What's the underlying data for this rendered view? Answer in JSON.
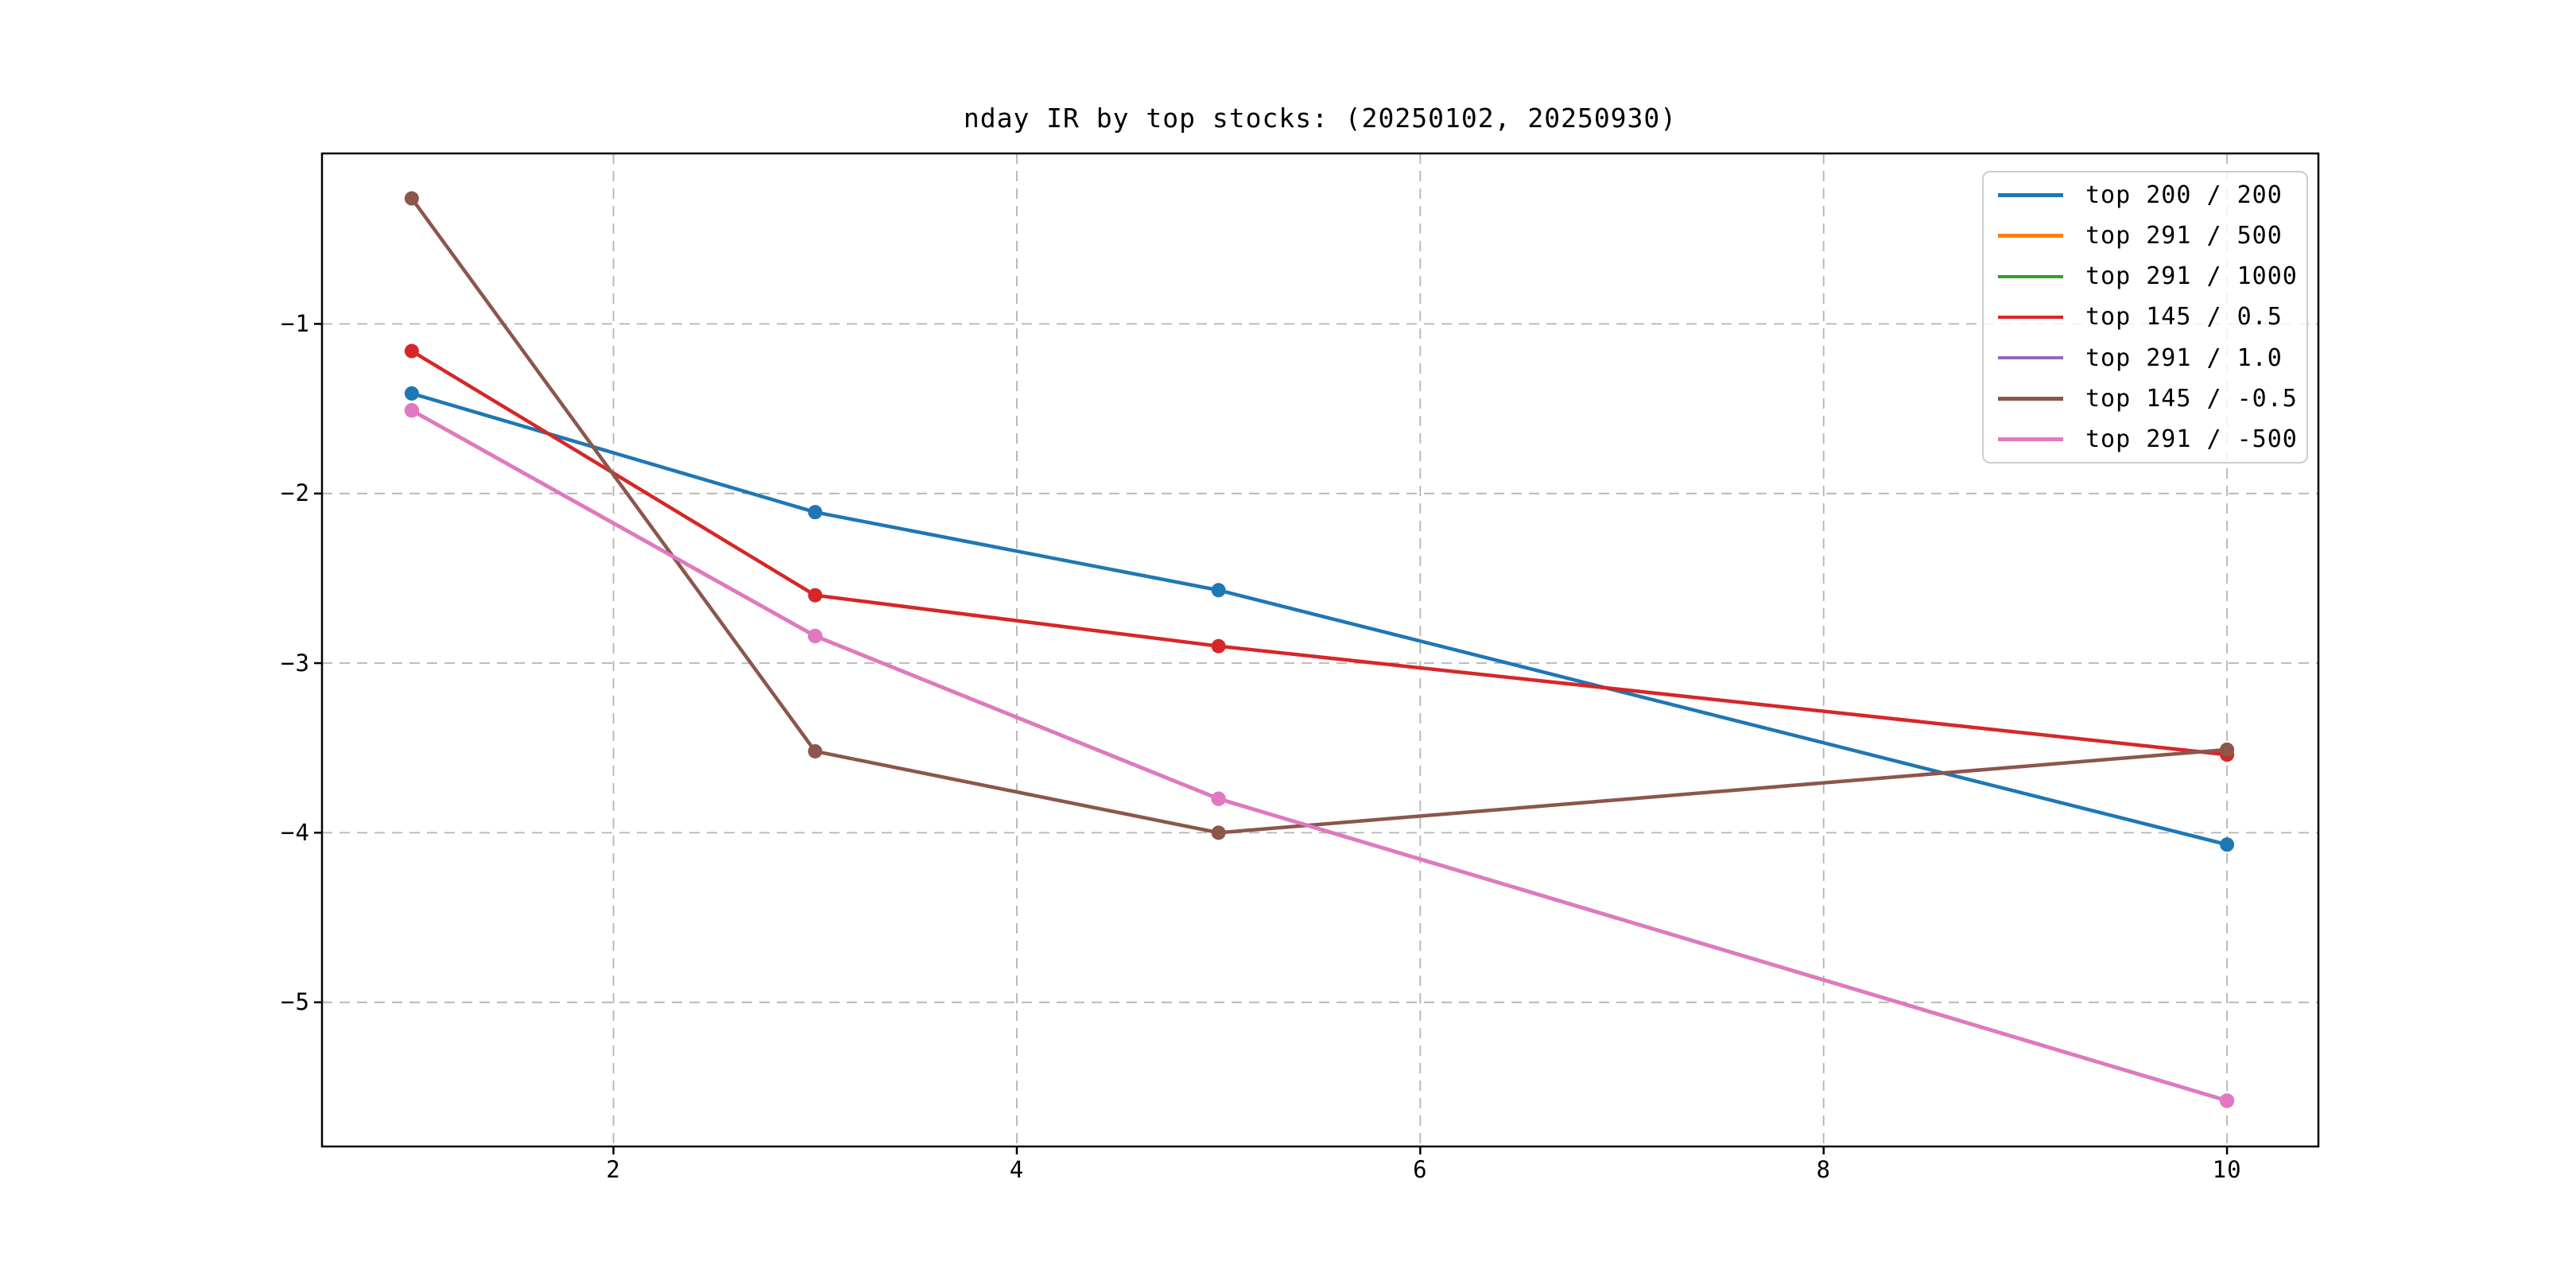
{
  "title": "nday IR by top stocks: (20250102, 20250930)",
  "chart_data": {
    "type": "line",
    "title": "nday IR by top stocks: (20250102, 20250930)",
    "xlabel": "",
    "ylabel": "",
    "x": [
      1,
      3,
      5,
      10
    ],
    "xlim": [
      0.555,
      10.453
    ],
    "ylim": [
      -5.85,
      0.005
    ],
    "xticks": {
      "values": [
        2,
        4,
        6,
        8,
        10
      ],
      "labels": [
        "2",
        "4",
        "6",
        "8",
        "10"
      ]
    },
    "yticks": {
      "values": [
        -1,
        -2,
        -3,
        -4,
        -5
      ],
      "labels": [
        "−1",
        "−2",
        "−3",
        "−4",
        "−5"
      ]
    },
    "grid": true,
    "grid_style": "dashed",
    "grid_color": "#b4b4b4",
    "legend_position": "upper right",
    "marker": "o",
    "series": [
      {
        "name": "top 200 / 200",
        "color": "#1f77b4",
        "values": [
          -1.41,
          -2.11,
          -2.57,
          -4.07
        ]
      },
      {
        "name": "top 291 / 500",
        "color": "#ff7f0e",
        "values": [
          -1.51,
          -2.84,
          -3.8,
          -5.58
        ]
      },
      {
        "name": "top 291 / 1000",
        "color": "#2ca02c",
        "values": [
          -1.51,
          -2.84,
          -3.8,
          -5.58
        ]
      },
      {
        "name": "top 145 / 0.5",
        "color": "#d62728",
        "values": [
          -1.16,
          -2.6,
          -2.9,
          -3.54
        ]
      },
      {
        "name": "top 291 / 1.0",
        "color": "#9467bd",
        "values": [
          -1.51,
          -2.84,
          -3.8,
          -5.58
        ]
      },
      {
        "name": "top 145 / -0.5",
        "color": "#8c564b",
        "values": [
          -0.26,
          -3.52,
          -4.0,
          -3.51
        ]
      },
      {
        "name": "top 291 / -500",
        "color": "#e377c2",
        "values": [
          -1.51,
          -2.84,
          -3.8,
          -5.58
        ]
      }
    ]
  }
}
